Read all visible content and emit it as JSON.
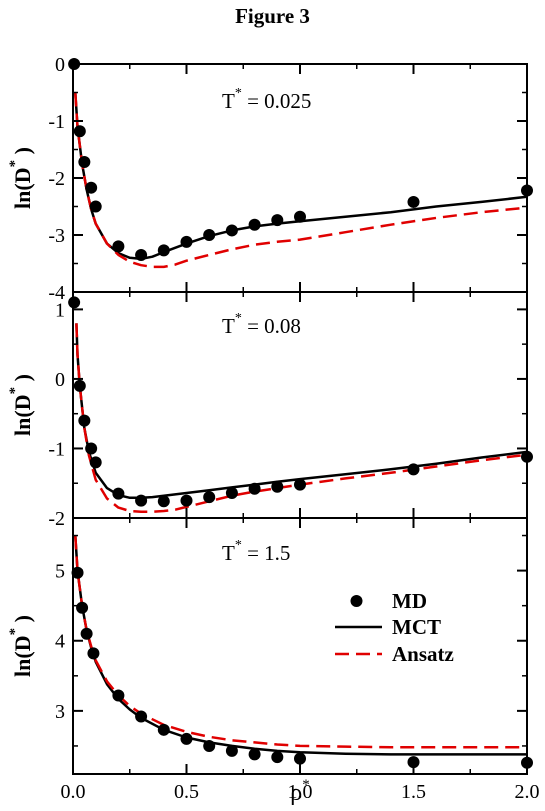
{
  "title": "Figure 3",
  "x_axis": {
    "label": "ρ",
    "label_superscript": "*",
    "range": [
      0,
      2
    ],
    "tick_values": [
      0,
      0.5,
      1,
      1.5,
      2
    ],
    "tick_labels": [
      "0.0",
      "0.5",
      "1.0",
      "1.5",
      "2.0"
    ]
  },
  "legend": {
    "placement": "bottom panel, right side",
    "entries": [
      {
        "label": "MD",
        "style": "marker"
      },
      {
        "label": "MCT",
        "style": "solid"
      },
      {
        "label": "Ansatz",
        "style": "dashed"
      }
    ]
  },
  "colors": {
    "md": "#000000",
    "mct": "#000000",
    "ansatz": "#e00000"
  },
  "chart_data": [
    {
      "type": "line",
      "annotation": "T",
      "annotation_superscript": "*",
      "annotation_value": " = 0.025",
      "ylabel": "ln(D",
      "ylabel_superscript": "*",
      "ylabel_end": ")",
      "ylim": [
        -4,
        0
      ],
      "yticks": [
        0,
        -1,
        -2,
        -3,
        -4
      ],
      "ytick_labels": [
        "0",
        "-1",
        "-2",
        "-3",
        "-4"
      ],
      "series": [
        {
          "name": "MD",
          "style": "marker",
          "x": [
            0.005,
            0.03,
            0.05,
            0.08,
            0.1,
            0.2,
            0.3,
            0.4,
            0.5,
            0.6,
            0.7,
            0.8,
            0.9,
            1.0,
            1.5,
            2.0
          ],
          "y": [
            0.0,
            -1.18,
            -1.72,
            -2.17,
            -2.5,
            -3.2,
            -3.35,
            -3.27,
            -3.12,
            -3.0,
            -2.92,
            -2.82,
            -2.74,
            -2.68,
            -2.42,
            -2.22
          ]
        },
        {
          "name": "MCT",
          "style": "solid",
          "x": [
            0.01,
            0.02,
            0.04,
            0.06,
            0.08,
            0.1,
            0.15,
            0.2,
            0.25,
            0.3,
            0.35,
            0.4,
            0.5,
            0.6,
            0.7,
            0.8,
            0.9,
            1.0,
            1.2,
            1.4,
            1.6,
            1.8,
            2.0
          ],
          "y": [
            -0.5,
            -1.1,
            -1.75,
            -2.2,
            -2.55,
            -2.8,
            -3.15,
            -3.32,
            -3.4,
            -3.42,
            -3.38,
            -3.3,
            -3.15,
            -3.02,
            -2.92,
            -2.85,
            -2.8,
            -2.76,
            -2.68,
            -2.6,
            -2.5,
            -2.42,
            -2.33
          ]
        },
        {
          "name": "Ansatz",
          "style": "dashed",
          "x": [
            0.01,
            0.02,
            0.04,
            0.06,
            0.08,
            0.1,
            0.15,
            0.2,
            0.25,
            0.3,
            0.35,
            0.4,
            0.45,
            0.5,
            0.6,
            0.7,
            0.8,
            0.9,
            1.0,
            1.2,
            1.4,
            1.6,
            1.8,
            2.0
          ],
          "y": [
            -0.5,
            -1.1,
            -1.75,
            -2.2,
            -2.55,
            -2.8,
            -3.15,
            -3.35,
            -3.47,
            -3.53,
            -3.56,
            -3.56,
            -3.52,
            -3.45,
            -3.35,
            -3.25,
            -3.17,
            -3.12,
            -3.08,
            -2.95,
            -2.82,
            -2.7,
            -2.6,
            -2.52
          ]
        }
      ]
    },
    {
      "type": "line",
      "annotation": "T",
      "annotation_superscript": "*",
      "annotation_value": " = 0.08",
      "ylabel": "ln(D",
      "ylabel_superscript": "*",
      "ylabel_end": ")",
      "ylim": [
        -2,
        1.25
      ],
      "yticks": [
        1,
        0,
        -1,
        -2
      ],
      "ytick_labels": [
        "1",
        "0",
        "-1",
        "-2"
      ],
      "series": [
        {
          "name": "MD",
          "style": "marker",
          "x": [
            0.005,
            0.03,
            0.05,
            0.08,
            0.1,
            0.2,
            0.3,
            0.4,
            0.5,
            0.6,
            0.7,
            0.8,
            0.9,
            1.0,
            1.5,
            2.0
          ],
          "y": [
            1.1,
            -0.1,
            -0.6,
            -1.0,
            -1.2,
            -1.65,
            -1.75,
            -1.76,
            -1.75,
            -1.7,
            -1.64,
            -1.58,
            -1.55,
            -1.52,
            -1.3,
            -1.12
          ]
        },
        {
          "name": "MCT",
          "style": "solid",
          "x": [
            0.015,
            0.02,
            0.03,
            0.05,
            0.07,
            0.1,
            0.15,
            0.2,
            0.25,
            0.3,
            0.35,
            0.4,
            0.5,
            0.6,
            0.7,
            0.8,
            0.9,
            1.0,
            1.2,
            1.4,
            1.6,
            1.8,
            2.0
          ],
          "y": [
            0.8,
            0.35,
            -0.1,
            -0.7,
            -1.05,
            -1.35,
            -1.57,
            -1.67,
            -1.71,
            -1.71,
            -1.7,
            -1.68,
            -1.64,
            -1.6,
            -1.56,
            -1.52,
            -1.48,
            -1.44,
            -1.37,
            -1.3,
            -1.22,
            -1.13,
            -1.05
          ]
        },
        {
          "name": "Ansatz",
          "style": "dashed",
          "x": [
            0.015,
            0.02,
            0.03,
            0.05,
            0.07,
            0.1,
            0.15,
            0.2,
            0.25,
            0.3,
            0.35,
            0.4,
            0.45,
            0.5,
            0.6,
            0.7,
            0.8,
            0.9,
            1.0,
            1.2,
            1.4,
            1.6,
            1.8,
            2.0
          ],
          "y": [
            0.8,
            0.35,
            -0.1,
            -0.7,
            -1.1,
            -1.45,
            -1.72,
            -1.85,
            -1.9,
            -1.91,
            -1.91,
            -1.9,
            -1.88,
            -1.84,
            -1.76,
            -1.68,
            -1.62,
            -1.57,
            -1.52,
            -1.43,
            -1.35,
            -1.26,
            -1.17,
            -1.09
          ]
        }
      ]
    },
    {
      "type": "line",
      "annotation": "T",
      "annotation_superscript": "*",
      "annotation_value": " = 1.5",
      "ylabel": "ln(D",
      "ylabel_superscript": "*",
      "ylabel_end": ")",
      "ylim": [
        2.1,
        5.75
      ],
      "yticks": [
        5,
        4,
        3
      ],
      "ytick_labels": [
        "5",
        "4",
        "3"
      ],
      "series": [
        {
          "name": "MD",
          "style": "marker",
          "x": [
            0.02,
            0.04,
            0.06,
            0.09,
            0.2,
            0.3,
            0.4,
            0.5,
            0.6,
            0.7,
            0.8,
            0.9,
            1.0,
            1.5,
            2.0
          ],
          "y": [
            4.97,
            4.47,
            4.1,
            3.82,
            3.22,
            2.92,
            2.73,
            2.6,
            2.5,
            2.43,
            2.38,
            2.34,
            2.32,
            2.27,
            2.26
          ]
        },
        {
          "name": "MCT",
          "style": "solid",
          "x": [
            0.01,
            0.02,
            0.04,
            0.06,
            0.08,
            0.1,
            0.15,
            0.2,
            0.25,
            0.3,
            0.4,
            0.5,
            0.6,
            0.7,
            0.8,
            0.9,
            1.0,
            1.2,
            1.4,
            1.6,
            1.8,
            2.0
          ],
          "y": [
            5.5,
            5.0,
            4.5,
            4.15,
            3.9,
            3.7,
            3.38,
            3.17,
            3.02,
            2.9,
            2.73,
            2.62,
            2.55,
            2.5,
            2.46,
            2.43,
            2.41,
            2.39,
            2.38,
            2.38,
            2.38,
            2.38
          ]
        },
        {
          "name": "Ansatz",
          "style": "dashed",
          "x": [
            0.01,
            0.02,
            0.04,
            0.06,
            0.08,
            0.1,
            0.15,
            0.2,
            0.25,
            0.3,
            0.4,
            0.5,
            0.6,
            0.7,
            0.8,
            0.9,
            1.0,
            1.2,
            1.4,
            1.6,
            1.8,
            2.0
          ],
          "y": [
            5.5,
            5.0,
            4.5,
            4.15,
            3.92,
            3.72,
            3.42,
            3.22,
            3.07,
            2.96,
            2.8,
            2.7,
            2.63,
            2.58,
            2.55,
            2.52,
            2.5,
            2.49,
            2.48,
            2.48,
            2.48,
            2.48
          ]
        }
      ]
    }
  ]
}
